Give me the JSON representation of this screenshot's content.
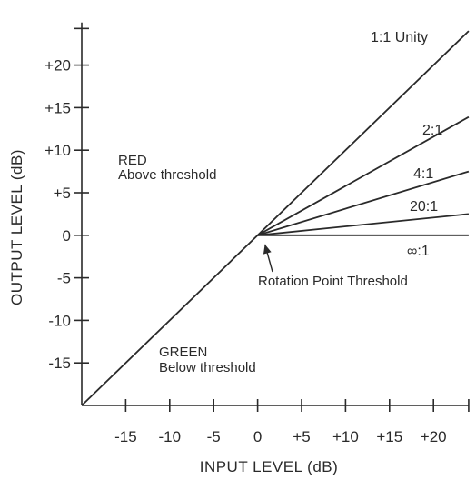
{
  "chart_data": {
    "type": "line",
    "title": "",
    "xlabel": "INPUT LEVEL (dB)",
    "ylabel": "OUTPUT LEVEL (dB)",
    "xlim": [
      -20,
      24
    ],
    "ylim": [
      -20,
      25
    ],
    "x_ticks": [
      {
        "value": -15,
        "label": "-15"
      },
      {
        "value": -10,
        "label": "-10"
      },
      {
        "value": -5,
        "label": "-5"
      },
      {
        "value": 0,
        "label": "0"
      },
      {
        "value": 5,
        "label": "+5"
      },
      {
        "value": 10,
        "label": "+10"
      },
      {
        "value": 15,
        "label": "+15"
      },
      {
        "value": 20,
        "label": "+20"
      }
    ],
    "y_ticks": [
      {
        "value": 20,
        "label": "+20"
      },
      {
        "value": 15,
        "label": "+15"
      },
      {
        "value": 10,
        "label": "+10"
      },
      {
        "value": 5,
        "label": "+5"
      },
      {
        "value": 0,
        "label": "0"
      },
      {
        "value": -5,
        "label": "-5"
      },
      {
        "value": -10,
        "label": "-10"
      },
      {
        "value": -15,
        "label": "-15"
      }
    ],
    "series": [
      {
        "name": "1:1 Unity",
        "x": [
          -20,
          24
        ],
        "y": [
          -20,
          24
        ]
      },
      {
        "name": "2:1",
        "x": [
          0,
          24
        ],
        "y": [
          0,
          13.9
        ]
      },
      {
        "name": "4:1",
        "x": [
          0,
          24
        ],
        "y": [
          0,
          7.5
        ]
      },
      {
        "name": "20:1",
        "x": [
          0,
          24
        ],
        "y": [
          0,
          2.5
        ]
      },
      {
        "name": "∞:1",
        "x": [
          0,
          24
        ],
        "y": [
          0,
          0
        ]
      }
    ],
    "annotations": [
      {
        "text_lines": [
          "RED",
          "Above threshold"
        ]
      },
      {
        "text_lines": [
          "GREEN",
          "Below threshold"
        ]
      },
      {
        "text": "Rotation Point Threshold",
        "points_to": [
          0,
          0
        ]
      }
    ],
    "grid": false,
    "legend": "none"
  }
}
